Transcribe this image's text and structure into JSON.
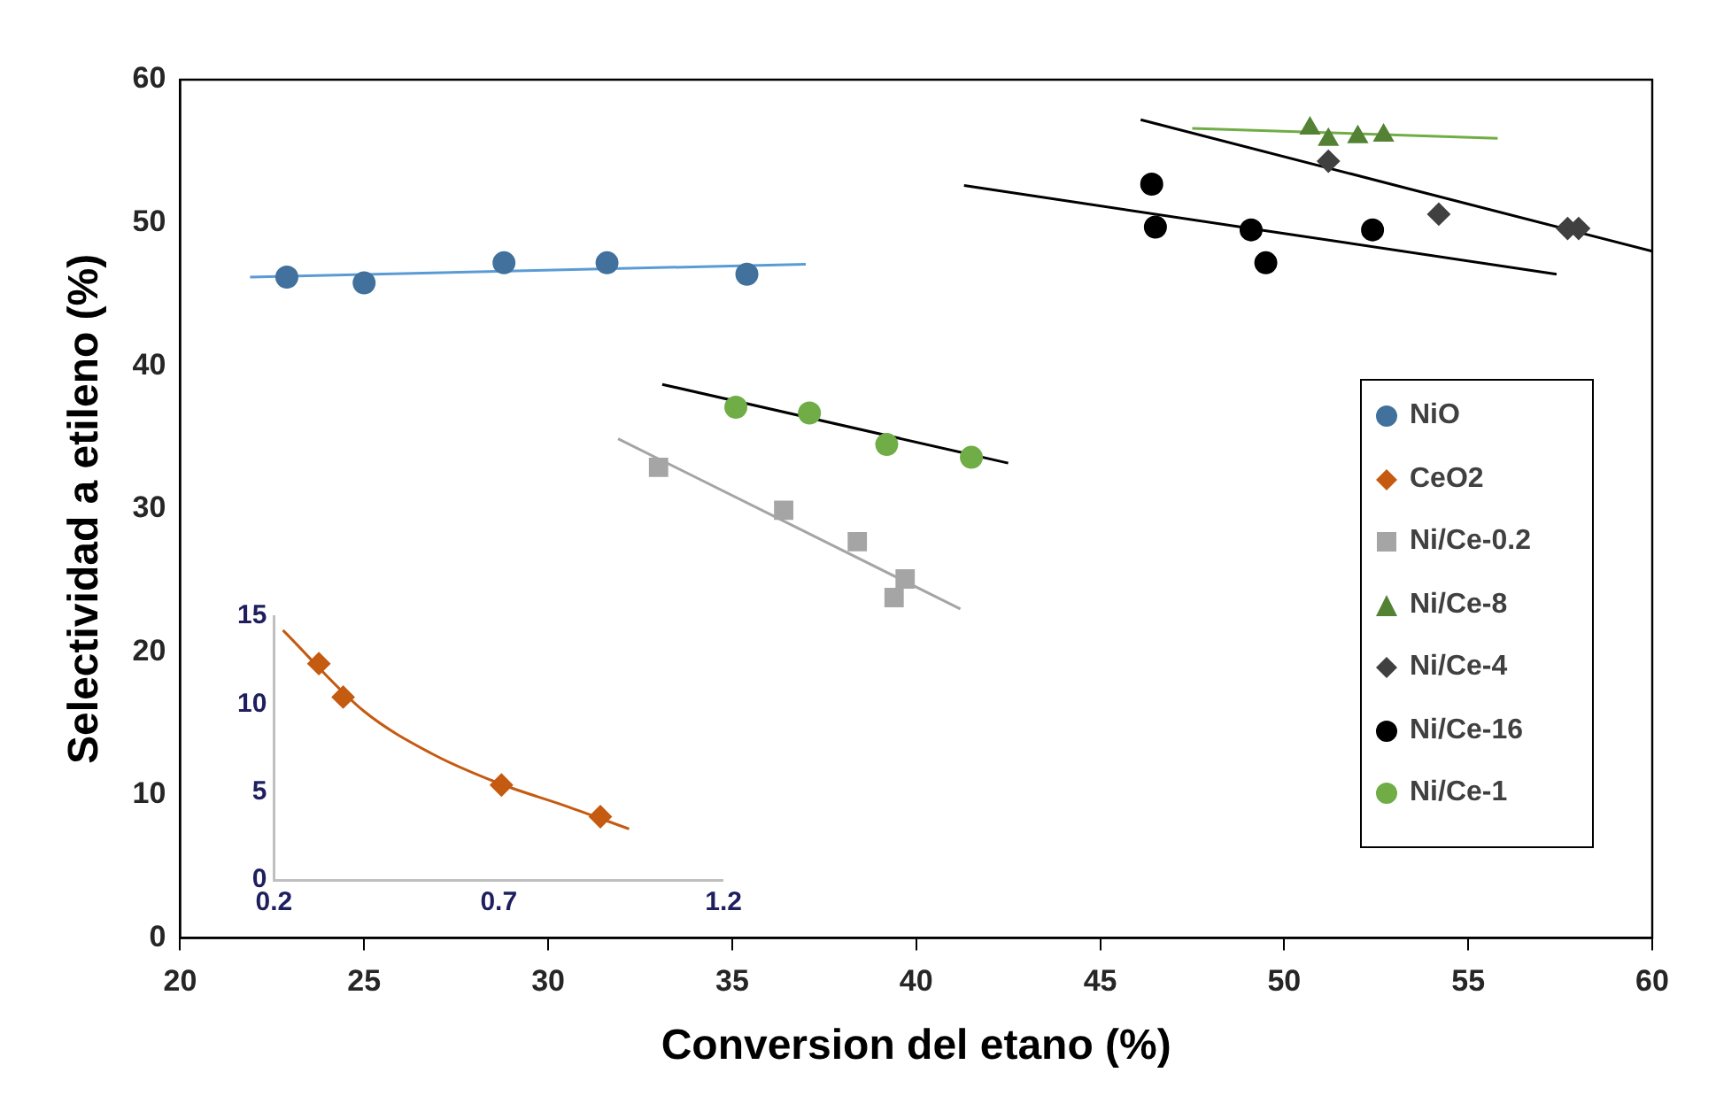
{
  "chart_data": [
    {
      "type": "scatter",
      "xlabel": "Conversion del etano (%)",
      "ylabel": "Selectividad a etileno (%)",
      "xlim": [
        20,
        60
      ],
      "ylim": [
        0,
        60
      ],
      "xticks": [
        20,
        25,
        30,
        35,
        40,
        45,
        50,
        55,
        60
      ],
      "yticks": [
        0,
        10,
        20,
        30,
        40,
        50,
        60
      ],
      "grid": false,
      "legend": "right",
      "series": [
        {
          "name": "NiO",
          "color": "#41719c",
          "marker": "circle",
          "x": [
            22.9,
            25.0,
            28.8,
            31.6,
            35.4
          ],
          "values": [
            46.2,
            45.8,
            47.2,
            47.2,
            46.4
          ]
        },
        {
          "name": "Ni/Ce-0.2",
          "color": "#a5a5a5",
          "marker": "square",
          "x": [
            33.0,
            36.4,
            38.4,
            39.4,
            39.7
          ],
          "values": [
            32.9,
            29.9,
            27.7,
            23.8,
            25.1
          ]
        },
        {
          "name": "Ni/Ce-8",
          "color": "#548235",
          "marker": "triangle",
          "x": [
            50.7,
            51.2,
            52.0,
            52.7
          ],
          "values": [
            56.6,
            55.8,
            56.0,
            56.1
          ]
        },
        {
          "name": "Ni/Ce-4",
          "color": "#404040",
          "marker": "diamond",
          "x": [
            51.2,
            54.2,
            57.7,
            58.0
          ],
          "values": [
            54.3,
            50.6,
            49.6,
            49.6
          ]
        },
        {
          "name": "Ni/Ce-16",
          "color": "#000000",
          "marker": "circle",
          "x": [
            46.4,
            46.5,
            49.1,
            49.5,
            52.4
          ],
          "values": [
            52.7,
            49.7,
            49.5,
            47.2,
            49.5
          ]
        },
        {
          "name": "Ni/Ce-1",
          "color": "#70ad47",
          "marker": "circle",
          "x": [
            35.1,
            37.1,
            39.2,
            41.5
          ],
          "values": [
            37.1,
            36.7,
            34.5,
            33.6
          ]
        },
        {
          "type": "line",
          "color": "#5b9bd5",
          "marker": "none",
          "x": [
            21.9,
            37.0
          ],
          "values": [
            46.2,
            47.1
          ]
        },
        {
          "type": "line",
          "color": "#a5a5a5",
          "marker": "none",
          "x": [
            31.9,
            41.2
          ],
          "values": [
            34.9,
            23.0
          ]
        },
        {
          "type": "line",
          "color": "#70ad47",
          "marker": "none",
          "x": [
            47.5,
            55.8
          ],
          "values": [
            56.6,
            55.9
          ]
        },
        {
          "type": "line",
          "color": "#000000",
          "marker": "none",
          "x": [
            46.1,
            60.0
          ],
          "values": [
            57.2,
            48.0
          ]
        },
        {
          "type": "line",
          "color": "#000000",
          "marker": "none",
          "x": [
            41.3,
            57.4
          ],
          "values": [
            52.6,
            46.4
          ]
        },
        {
          "type": "line",
          "color": "#000000",
          "marker": "none",
          "x": [
            33.1,
            42.5
          ],
          "values": [
            38.7,
            33.2
          ]
        }
      ]
    },
    {
      "type": "scatter",
      "xlim": [
        0.2,
        1.2
      ],
      "ylim": [
        0,
        15
      ],
      "xticks": [
        0.2,
        0.7,
        1.2
      ],
      "yticks": [
        0,
        5,
        10,
        15
      ],
      "grid": false,
      "series": [
        {
          "name": "CeO2",
          "color": "#c55a11",
          "marker": "diamond",
          "x": [
            0.3,
            0.354,
            0.706,
            0.926
          ],
          "values": [
            12.3,
            10.4,
            5.4,
            3.6
          ]
        },
        {
          "type": "line",
          "color": "#c55a11",
          "marker": "none",
          "x": [
            0.22,
            0.4,
            0.55,
            0.7,
            0.85,
            0.99
          ],
          "values": [
            14.2,
            9.6,
            7.2,
            5.5,
            4.2,
            2.9
          ]
        }
      ]
    }
  ]
}
